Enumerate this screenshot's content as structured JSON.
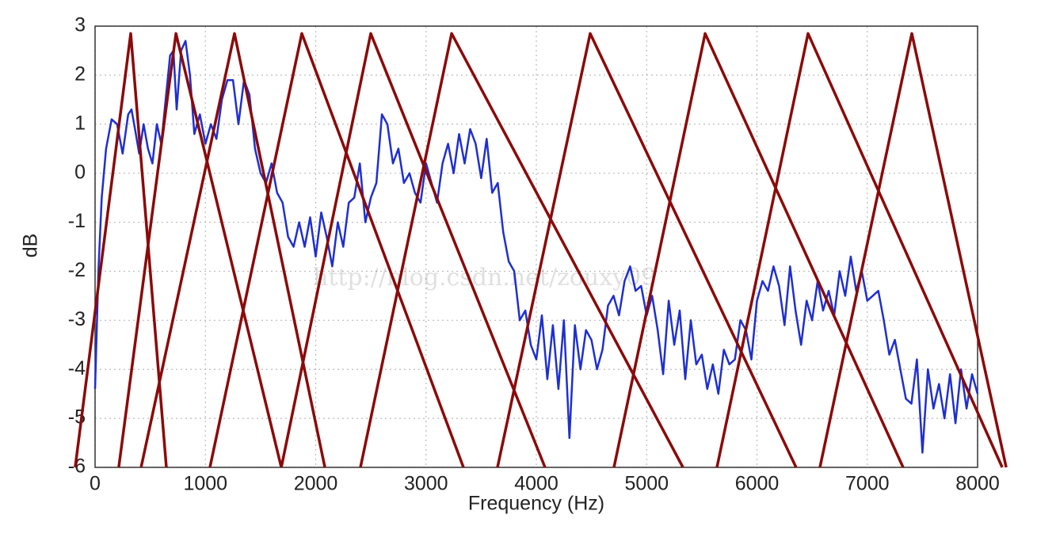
{
  "chart_data": {
    "type": "line",
    "xlabel": "Frequency (Hz)",
    "ylabel": "dB",
    "watermark": "http://blog.csdn.net/zouxy09",
    "xlim": [
      0,
      8000
    ],
    "xticks": [
      0,
      1000,
      2000,
      3000,
      4000,
      5000,
      6000,
      7000,
      8000
    ],
    "ylim": [
      -6,
      3
    ],
    "yticks": [
      -6,
      -5,
      -4,
      -3,
      -2,
      -1,
      0,
      1,
      2,
      3
    ],
    "grid": true,
    "series": [
      {
        "color": "#1f2fd0",
        "x": [
          0,
          30,
          60,
          100,
          150,
          200,
          250,
          300,
          330,
          370,
          400,
          440,
          480,
          520,
          560,
          600,
          640,
          680,
          710,
          740,
          780,
          820,
          860,
          900,
          950,
          1000,
          1050,
          1100,
          1150,
          1200,
          1250,
          1300,
          1350,
          1400,
          1450,
          1500,
          1550,
          1600,
          1650,
          1700,
          1750,
          1800,
          1850,
          1900,
          1950,
          2000,
          2050,
          2100,
          2150,
          2200,
          2250,
          2300,
          2350,
          2400,
          2450,
          2500,
          2550,
          2600,
          2650,
          2700,
          2750,
          2800,
          2850,
          2900,
          2950,
          3000,
          3050,
          3100,
          3150,
          3200,
          3250,
          3300,
          3350,
          3400,
          3450,
          3500,
          3550,
          3600,
          3650,
          3700,
          3750,
          3800,
          3850,
          3900,
          3950,
          4000,
          4050,
          4100,
          4150,
          4200,
          4250,
          4300,
          4350,
          4400,
          4450,
          4500,
          4550,
          4600,
          4650,
          4700,
          4750,
          4800,
          4850,
          4900,
          4950,
          5000,
          5050,
          5100,
          5150,
          5200,
          5250,
          5300,
          5350,
          5400,
          5450,
          5500,
          5550,
          5600,
          5650,
          5700,
          5750,
          5800,
          5850,
          5900,
          5950,
          6000,
          6050,
          6100,
          6150,
          6200,
          6250,
          6300,
          6350,
          6400,
          6450,
          6500,
          6550,
          6600,
          6650,
          6700,
          6750,
          6800,
          6850,
          6900,
          6950,
          7000,
          7050,
          7100,
          7150,
          7200,
          7250,
          7300,
          7350,
          7400,
          7450,
          7500,
          7550,
          7600,
          7650,
          7700,
          7750,
          7800,
          7850,
          7900,
          7950,
          8000
        ],
        "values": [
          -4.4,
          -2,
          -0.5,
          0.5,
          1.1,
          1.0,
          0.4,
          1.2,
          1.3,
          0.8,
          0.4,
          1.0,
          0.5,
          0.2,
          1.0,
          0.6,
          1.5,
          2.4,
          2.5,
          1.3,
          2.5,
          2.7,
          2.0,
          0.8,
          1.2,
          0.6,
          1.0,
          0.7,
          1.5,
          1.9,
          1.9,
          1.0,
          1.9,
          1.6,
          0.5,
          0.0,
          -0.2,
          0.2,
          -0.4,
          -0.6,
          -1.3,
          -1.5,
          -1.0,
          -1.5,
          -0.9,
          -1.7,
          -0.8,
          -1.3,
          -1.9,
          -1.0,
          -1.5,
          -0.6,
          -0.5,
          0.2,
          -1.0,
          -0.5,
          -0.2,
          1.2,
          1.0,
          0.2,
          0.5,
          -0.2,
          0.0,
          -0.4,
          -0.6,
          0.2,
          -0.2,
          -0.6,
          0.2,
          0.6,
          0.0,
          0.8,
          0.2,
          0.9,
          0.6,
          -0.1,
          0.7,
          -0.4,
          -0.2,
          -1.2,
          -1.8,
          -2.0,
          -3.0,
          -2.8,
          -3.5,
          -3.8,
          -2.9,
          -4.2,
          -3.1,
          -4.4,
          -3.0,
          -5.4,
          -3.1,
          -4.0,
          -3.2,
          -3.4,
          -4.0,
          -3.6,
          -2.7,
          -2.5,
          -2.9,
          -2.2,
          -1.9,
          -2.4,
          -2.3,
          -2.9,
          -2.5,
          -3.2,
          -4.1,
          -2.6,
          -3.5,
          -2.8,
          -4.2,
          -3.0,
          -3.9,
          -3.7,
          -4.4,
          -3.9,
          -4.5,
          -3.6,
          -3.9,
          -3.8,
          -3.0,
          -3.2,
          -3.8,
          -2.6,
          -2.2,
          -2.4,
          -1.9,
          -2.3,
          -3.1,
          -1.9,
          -2.8,
          -3.5,
          -2.6,
          -3.0,
          -2.2,
          -2.8,
          -2.4,
          -2.9,
          -2.0,
          -2.5,
          -1.7,
          -2.4,
          -2.0,
          -2.6,
          -2.5,
          -2.4,
          -3.0,
          -3.7,
          -3.4,
          -4.0,
          -4.6,
          -4.7,
          -3.8,
          -5.7,
          -4.0,
          -4.8,
          -4.3,
          -5.0,
          -4.1,
          -5.1,
          -4.0,
          -4.8,
          -4.1,
          -4.5
        ]
      },
      {
        "color": "#8b0a0a",
        "x": [
          -180,
          323,
          646
        ],
        "values": [
          -6,
          2.85,
          -6
        ]
      },
      {
        "color": "#8b0a0a",
        "x": [
          215,
          733,
          1688
        ],
        "values": [
          -6,
          2.85,
          -6
        ]
      },
      {
        "color": "#8b0a0a",
        "x": [
          417,
          1264,
          2083
        ],
        "values": [
          -6,
          2.85,
          -6
        ]
      },
      {
        "color": "#8b0a0a",
        "x": [
          1041,
          1874,
          3339
        ],
        "values": [
          -6,
          2.85,
          -6
        ]
      },
      {
        "color": "#8b0a0a",
        "x": [
          1688,
          2499,
          4079
        ],
        "values": [
          -6,
          2.85,
          -6
        ]
      },
      {
        "color": "#8b0a0a",
        "x": [
          2406,
          3232,
          5329
        ],
        "values": [
          -6,
          2.85,
          -6
        ]
      },
      {
        "color": "#8b0a0a",
        "x": [
          3648,
          4488,
          6355
        ],
        "values": [
          -6,
          2.85,
          -6
        ]
      },
      {
        "color": "#8b0a0a",
        "x": [
          4704,
          5530,
          7325
        ],
        "values": [
          -6,
          2.85,
          -6
        ]
      },
      {
        "color": "#8b0a0a",
        "x": [
          5637,
          6463,
          8223
        ],
        "values": [
          -6,
          2.85,
          -6
        ]
      },
      {
        "color": "#8b0a0a",
        "x": [
          6571,
          7404,
          8259
        ],
        "values": [
          -6,
          2.85,
          -6
        ]
      }
    ]
  }
}
